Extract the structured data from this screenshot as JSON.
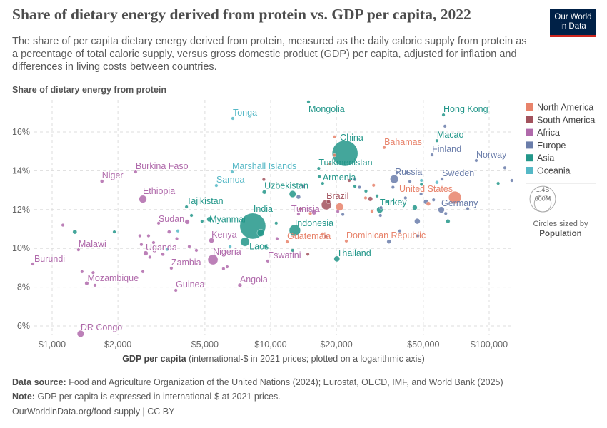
{
  "header": {
    "title": "Share of dietary energy derived from protein vs. GDP per capita, 2022",
    "subtitle": "The share of per capita dietary energy derived from protein, measured as the daily caloric supply from protein as a percentage of total caloric supply, versus gross domestic product (GDP) per capita, adjusted for inflation and differences in living costs between countries.",
    "logo_line1": "Our World",
    "logo_line2": "in Data"
  },
  "footer": {
    "source_label": "Data source:",
    "source_text": "Food and Agriculture Organization of the United Nations (2024); Eurostat, OECD, IMF, and World Bank (2025)",
    "note_label": "Note:",
    "note_text": "GDP per capita is expressed in international-$ at 2021 prices.",
    "url": "OurWorldinData.org/food-supply | CC BY"
  },
  "colors": {
    "North America": "#e8836b",
    "South America": "#a2525d",
    "Africa": "#b06aab",
    "Europe": "#6a7daa",
    "Asia": "#23978a",
    "Oceania": "#55b8c6"
  },
  "chart_data": {
    "type": "scatter",
    "title": "Share of dietary energy derived from protein vs. GDP per capita, 2022",
    "ylabel": "Share of dietary energy from protein",
    "xlabel_bold": "GDP per capita",
    "xlabel_rest": "(international-$ in 2021 prices; plotted on a logarithmic axis)",
    "xscale": "log",
    "xlim": [
      850,
      130000
    ],
    "ylim": [
      5.5,
      17.7
    ],
    "xticks": [
      {
        "v": 1000,
        "label": "$1,000"
      },
      {
        "v": 2000,
        "label": "$2,000"
      },
      {
        "v": 5000,
        "label": "$5,000"
      },
      {
        "v": 10000,
        "label": "$10,000"
      },
      {
        "v": 20000,
        "label": "$20,000"
      },
      {
        "v": 50000,
        "label": "$50,000"
      },
      {
        "v": 100000,
        "label": "$100,000"
      }
    ],
    "yticks": [
      {
        "v": 6,
        "label": "6%"
      },
      {
        "v": 8,
        "label": "8%"
      },
      {
        "v": 10,
        "label": "10%"
      },
      {
        "v": 12,
        "label": "12%"
      },
      {
        "v": 14,
        "label": "14%"
      },
      {
        "v": 16,
        "label": "16%"
      }
    ],
    "grid": true,
    "legend": {
      "placement": "right",
      "items": [
        "North America",
        "South America",
        "Africa",
        "Europe",
        "Asia",
        "Oceania"
      ],
      "size_values": [
        "1.4B",
        "600M"
      ],
      "size_pop": [
        1400,
        600
      ],
      "size_caption": "Circles sized by",
      "size_variable": "Population"
    },
    "points": [
      {
        "n": "China",
        "r": "Asia",
        "g": 21900,
        "p": 14.9,
        "pop": 1410
      },
      {
        "n": "India",
        "r": "Asia",
        "g": 8280,
        "p": 11.15,
        "pop": 1420
      },
      {
        "n": "Mongolia",
        "r": "Asia",
        "g": 14900,
        "p": 17.55,
        "pop": 3.4
      },
      {
        "n": "Tonga",
        "r": "Oceania",
        "g": 6710,
        "p": 16.7,
        "pop": 0.1
      },
      {
        "n": "Hong Kong",
        "r": "Asia",
        "g": 61800,
        "p": 16.88,
        "pop": 7.3
      },
      {
        "n": "Macao",
        "r": "Asia",
        "g": 57700,
        "p": 15.55,
        "pop": 0.7
      },
      {
        "n": "Bahamas",
        "r": "North America",
        "g": 33100,
        "p": 15.2,
        "pop": 0.4
      },
      {
        "n": "Finland",
        "r": "Europe",
        "g": 54800,
        "p": 14.82,
        "pop": 5.5
      },
      {
        "n": "Norway",
        "r": "Europe",
        "g": 87300,
        "p": 14.53,
        "pop": 5.4
      },
      {
        "n": "Russia",
        "r": "Europe",
        "g": 36800,
        "p": 13.57,
        "pop": 144
      },
      {
        "n": "Sweden",
        "r": "Europe",
        "g": 60900,
        "p": 13.57,
        "pop": 10.5
      },
      {
        "n": "United States",
        "r": "North America",
        "g": 69700,
        "p": 12.62,
        "pop": 333
      },
      {
        "n": "Germany",
        "r": "Europe",
        "g": 60400,
        "p": 11.99,
        "pop": 83
      },
      {
        "n": "Turkey",
        "r": "Asia",
        "g": 31600,
        "p": 11.99,
        "pop": 85
      },
      {
        "n": "Brazil",
        "r": "South America",
        "g": 18000,
        "p": 12.25,
        "pop": 215
      },
      {
        "n": "Armenia",
        "r": "Asia",
        "g": 17300,
        "p": 13.35,
        "pop": 2.8
      },
      {
        "n": "Turkmenistan",
        "r": "Asia",
        "g": 16600,
        "p": 14.12,
        "pop": 6.4
      },
      {
        "n": "Uzbekistan",
        "r": "Asia",
        "g": 9350,
        "p": 12.9,
        "pop": 35
      },
      {
        "n": "Indonesia",
        "r": "Asia",
        "g": 12900,
        "p": 10.93,
        "pop": 275
      },
      {
        "n": "Myanmar",
        "r": "Asia",
        "g": 5240,
        "p": 11.5,
        "pop": 54
      },
      {
        "n": "Tajikistan",
        "r": "Asia",
        "g": 4120,
        "p": 12.14,
        "pop": 10
      },
      {
        "n": "Samoa",
        "r": "Oceania",
        "g": 5640,
        "p": 13.24,
        "pop": 0.2
      },
      {
        "n": "Marshall Islands",
        "r": "Oceania",
        "g": 6660,
        "p": 13.94,
        "pop": 0.04
      },
      {
        "n": "Laos",
        "r": "Asia",
        "g": 9500,
        "p": 10.1,
        "pop": 7.5
      },
      {
        "n": "Kenya",
        "r": "Africa",
        "g": 5360,
        "p": 10.41,
        "pop": 54
      },
      {
        "n": "Nigeria",
        "r": "Africa",
        "g": 5440,
        "p": 9.42,
        "pop": 219
      },
      {
        "n": "Tunisia",
        "r": "Africa",
        "g": 13400,
        "p": 11.77,
        "pop": 12
      },
      {
        "n": "Guatemala",
        "r": "North America",
        "g": 11900,
        "p": 10.34,
        "pop": 17
      },
      {
        "n": "Thailand",
        "r": "Asia",
        "g": 20100,
        "p": 9.46,
        "pop": 72
      },
      {
        "n": "Eswatini",
        "r": "Africa",
        "g": 9700,
        "p": 9.35,
        "pop": 1.2
      },
      {
        "n": "Dominican Republic",
        "r": "North America",
        "g": 22200,
        "p": 10.38,
        "pop": 11
      },
      {
        "n": "Sudan",
        "r": "Africa",
        "g": 4150,
        "p": 11.37,
        "pop": 47
      },
      {
        "n": "Zambia",
        "r": "Africa",
        "g": 3510,
        "p": 8.98,
        "pop": 20
      },
      {
        "n": "Uganda",
        "r": "Africa",
        "g": 2680,
        "p": 9.75,
        "pop": 47
      },
      {
        "n": "Malawi",
        "r": "Africa",
        "g": 1320,
        "p": 9.93,
        "pop": 20
      },
      {
        "n": "Burundi",
        "r": "Africa",
        "g": 816,
        "p": 9.2,
        "pop": 13
      },
      {
        "n": "Mozambique",
        "r": "Africa",
        "g": 1440,
        "p": 8.2,
        "pop": 33
      },
      {
        "n": "Guinea",
        "r": "Africa",
        "g": 3680,
        "p": 7.84,
        "pop": 14
      },
      {
        "n": "Angola",
        "r": "Africa",
        "g": 7230,
        "p": 8.1,
        "pop": 36
      },
      {
        "n": "DR Congo",
        "r": "Africa",
        "g": 1350,
        "p": 5.6,
        "pop": 99
      },
      {
        "n": "Niger",
        "r": "Africa",
        "g": 1690,
        "p": 13.46,
        "pop": 26
      },
      {
        "n": "Burkina Faso",
        "r": "Africa",
        "g": 2410,
        "p": 13.94,
        "pop": 23
      },
      {
        "n": "Ethiopia",
        "r": "Africa",
        "g": 2600,
        "p": 12.54,
        "pop": 123
      },
      {
        "r": "North America",
        "g": 20700,
        "p": 12.14,
        "pop": 127
      },
      {
        "r": "Asia",
        "g": 12600,
        "p": 12.8,
        "pop": 98
      },
      {
        "r": "Asia",
        "g": 7630,
        "p": 10.34,
        "pop": 170
      },
      {
        "r": "Asia",
        "g": 9000,
        "p": 10.8,
        "pop": 115
      },
      {
        "r": "Africa",
        "g": 1120,
        "p": 11.2,
        "pop": 6
      },
      {
        "r": "Africa",
        "g": 1370,
        "p": 8.8,
        "pop": 5
      },
      {
        "r": "Africa",
        "g": 1540,
        "p": 8.75,
        "pop": 4
      },
      {
        "r": "Africa",
        "g": 1570,
        "p": 8.1,
        "pop": 8
      },
      {
        "r": "Africa",
        "g": 2560,
        "p": 10.2,
        "pop": 5
      },
      {
        "r": "Africa",
        "g": 2520,
        "p": 10.65,
        "pop": 8
      },
      {
        "r": "Africa",
        "g": 2760,
        "p": 10.65,
        "pop": 6
      },
      {
        "r": "Africa",
        "g": 2910,
        "p": 10.3,
        "pop": 17
      },
      {
        "r": "Africa",
        "g": 2800,
        "p": 9.55,
        "pop": 17
      },
      {
        "r": "Africa",
        "g": 2600,
        "p": 8.8,
        "pop": 5
      },
      {
        "r": "Africa",
        "g": 3070,
        "p": 11.3,
        "pop": 9
      },
      {
        "r": "Africa",
        "g": 3430,
        "p": 10.85,
        "pop": 28
      },
      {
        "r": "Africa",
        "g": 3720,
        "p": 10.5,
        "pop": 8
      },
      {
        "r": "Africa",
        "g": 3210,
        "p": 9.7,
        "pop": 28
      },
      {
        "r": "Africa",
        "g": 4240,
        "p": 10.1,
        "pop": 12
      },
      {
        "r": "Africa",
        "g": 4570,
        "p": 9.9,
        "pop": 17
      },
      {
        "r": "Africa",
        "g": 6320,
        "p": 9.05,
        "pop": 8
      },
      {
        "r": "Africa",
        "g": 6080,
        "p": 8.95,
        "pop": 2
      },
      {
        "r": "Africa",
        "g": 15800,
        "p": 11.85,
        "pop": 46
      },
      {
        "r": "Africa",
        "g": 20300,
        "p": 11.9,
        "pop": 2.5
      },
      {
        "r": "Africa",
        "g": 14100,
        "p": 13.2,
        "pop": 6
      },
      {
        "r": "Africa",
        "g": 10700,
        "p": 10.5,
        "pop": 3
      },
      {
        "r": "Asia",
        "g": 1270,
        "p": 10.85,
        "pop": 40
      },
      {
        "r": "Asia",
        "g": 1925,
        "p": 10.85,
        "pop": 12
      },
      {
        "r": "Asia",
        "g": 4340,
        "p": 11.7,
        "pop": 6
      },
      {
        "r": "Asia",
        "g": 4850,
        "p": 11.4,
        "pop": 19
      },
      {
        "r": "Asia",
        "g": 10600,
        "p": 11.3,
        "pop": 4
      },
      {
        "r": "Asia",
        "g": 30700,
        "p": 12.7,
        "pop": 10
      },
      {
        "r": "Asia",
        "g": 34000,
        "p": 12.4,
        "pop": 9
      },
      {
        "r": "Asia",
        "g": 45700,
        "p": 12.1,
        "pop": 52
      },
      {
        "r": "Asia",
        "g": 64800,
        "p": 11.4,
        "pop": 36
      },
      {
        "r": "Asia",
        "g": 24300,
        "p": 13.2,
        "pop": 3
      },
      {
        "r": "Asia",
        "g": 16700,
        "p": 13.7,
        "pop": 19
      },
      {
        "r": "Asia",
        "g": 12600,
        "p": 9.9,
        "pop": 22
      },
      {
        "r": "Asia",
        "g": 110000,
        "p": 13.35,
        "pop": 3
      },
      {
        "r": "Asia",
        "g": 49000,
        "p": 13.3,
        "pop": 9
      },
      {
        "r": "Asia",
        "g": 27300,
        "p": 12.95,
        "pop": 5
      },
      {
        "r": "Europe",
        "g": 62800,
        "p": 16.3,
        "pop": 0.4
      },
      {
        "r": "Europe",
        "g": 118000,
        "p": 14.15,
        "pop": 5
      },
      {
        "r": "Europe",
        "g": 127000,
        "p": 13.5,
        "pop": 0.6
      },
      {
        "r": "Europe",
        "g": 36300,
        "p": 13.15,
        "pop": 4
      },
      {
        "r": "Europe",
        "g": 37900,
        "p": 13.9,
        "pop": 2
      },
      {
        "r": "Europe",
        "g": 42000,
        "p": 13.9,
        "pop": 2
      },
      {
        "r": "Europe",
        "g": 43400,
        "p": 13.45,
        "pop": 10
      },
      {
        "r": "Europe",
        "g": 41400,
        "p": 12.6,
        "pop": 10
      },
      {
        "r": "Europe",
        "g": 48800,
        "p": 12.8,
        "pop": 5
      },
      {
        "r": "Europe",
        "g": 51400,
        "p": 12.4,
        "pop": 48
      },
      {
        "r": "Europe",
        "g": 55700,
        "p": 12.5,
        "pop": 9
      },
      {
        "r": "Europe",
        "g": 63300,
        "p": 11.8,
        "pop": 9
      },
      {
        "r": "Europe",
        "g": 79800,
        "p": 12.05,
        "pop": 5
      },
      {
        "r": "Europe",
        "g": 31800,
        "p": 11.7,
        "pop": 6
      },
      {
        "r": "Europe",
        "g": 46900,
        "p": 11.4,
        "pop": 68
      },
      {
        "r": "Europe",
        "g": 39000,
        "p": 10.9,
        "pop": 4
      },
      {
        "r": "Europe",
        "g": 47200,
        "p": 10.65,
        "pop": 6
      },
      {
        "r": "Europe",
        "g": 32000,
        "p": 12.1,
        "pop": 10
      },
      {
        "r": "Europe",
        "g": 24300,
        "p": 13.55,
        "pop": 3
      },
      {
        "r": "Europe",
        "g": 25500,
        "p": 13.15,
        "pop": 6
      },
      {
        "r": "Europe",
        "g": 34800,
        "p": 10.35,
        "pop": 38
      },
      {
        "r": "Europe",
        "g": 21400,
        "p": 11.75,
        "pop": 7
      },
      {
        "r": "Europe",
        "g": 13400,
        "p": 12.65,
        "pop": 38
      },
      {
        "r": "North America",
        "g": 19600,
        "p": 15.75,
        "pop": 0.3
      },
      {
        "r": "North America",
        "g": 19600,
        "p": 14.8,
        "pop": 0.1
      },
      {
        "r": "North America",
        "g": 18700,
        "p": 14.35,
        "pop": 0.2
      },
      {
        "r": "North America",
        "g": 27200,
        "p": 12.6,
        "pop": 4
      },
      {
        "r": "North America",
        "g": 29100,
        "p": 11.9,
        "pop": 5
      },
      {
        "r": "North America",
        "g": 29600,
        "p": 13.25,
        "pop": 1.4
      },
      {
        "r": "North America",
        "g": 17300,
        "p": 10.75,
        "pop": 6
      },
      {
        "r": "North America",
        "g": 15200,
        "p": 11.8,
        "pop": 10
      },
      {
        "r": "North America",
        "g": 52700,
        "p": 12.3,
        "pop": 38
      },
      {
        "r": "South America",
        "g": 9300,
        "p": 13.55,
        "pop": 0.8
      },
      {
        "r": "South America",
        "g": 13700,
        "p": 12.05,
        "pop": 7
      },
      {
        "r": "South America",
        "g": 14800,
        "p": 9.7,
        "pop": 12
      },
      {
        "r": "South America",
        "g": 28600,
        "p": 12.55,
        "pop": 46
      },
      {
        "r": "South America",
        "g": 18400,
        "p": 12.4,
        "pop": 34
      },
      {
        "r": "South America",
        "g": 17900,
        "p": 10.6,
        "pop": 3
      },
      {
        "r": "South America",
        "g": 22900,
        "p": 13.5,
        "pop": 3.4
      },
      {
        "r": "Oceania",
        "g": 3760,
        "p": 10.9,
        "pop": 0.7
      },
      {
        "r": "Oceania",
        "g": 49000,
        "p": 13.5,
        "pop": 5
      },
      {
        "r": "Oceania",
        "g": 57700,
        "p": 13.4,
        "pop": 26
      },
      {
        "r": "Oceania",
        "g": 3360,
        "p": 9.95,
        "pop": 0.3
      },
      {
        "r": "Oceania",
        "g": 6520,
        "p": 10.1,
        "pop": 0.9
      }
    ]
  }
}
